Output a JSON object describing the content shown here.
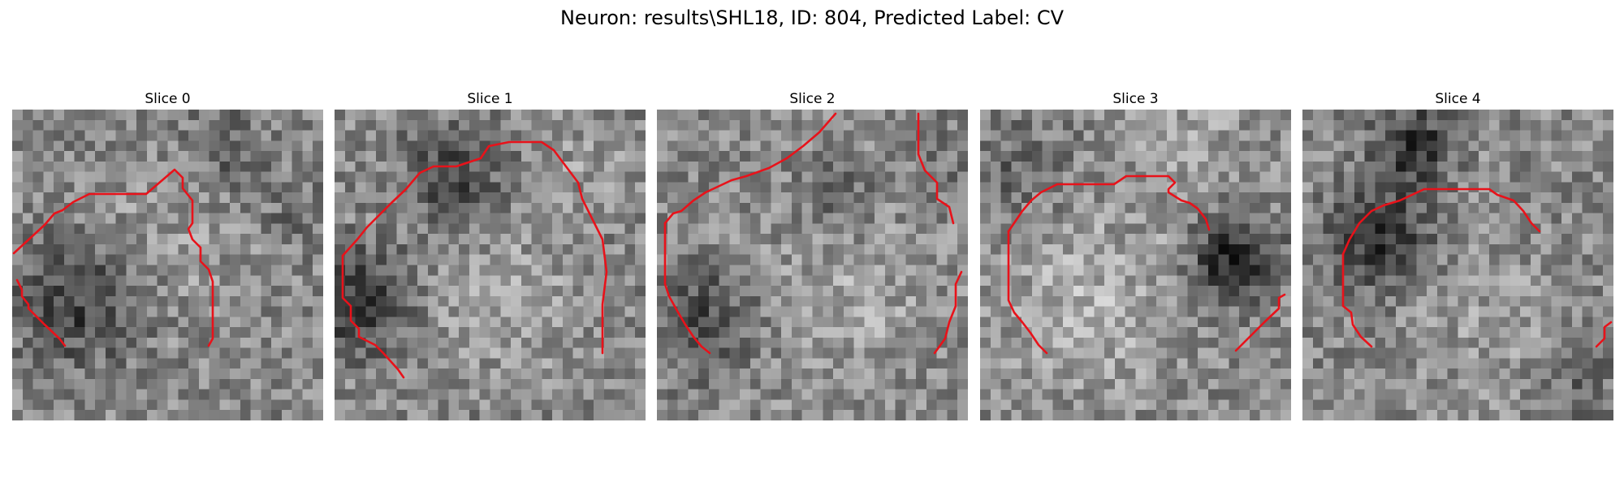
{
  "figure": {
    "title": "Neuron: results\\SHL18, ID: 804, Predicted Label: CV",
    "contour_color": "#e8121a"
  },
  "slices": [
    {
      "title": "Slice 0"
    },
    {
      "title": "Slice 1"
    },
    {
      "title": "Slice 2"
    },
    {
      "title": "Slice 3"
    },
    {
      "title": "Slice 4"
    }
  ]
}
